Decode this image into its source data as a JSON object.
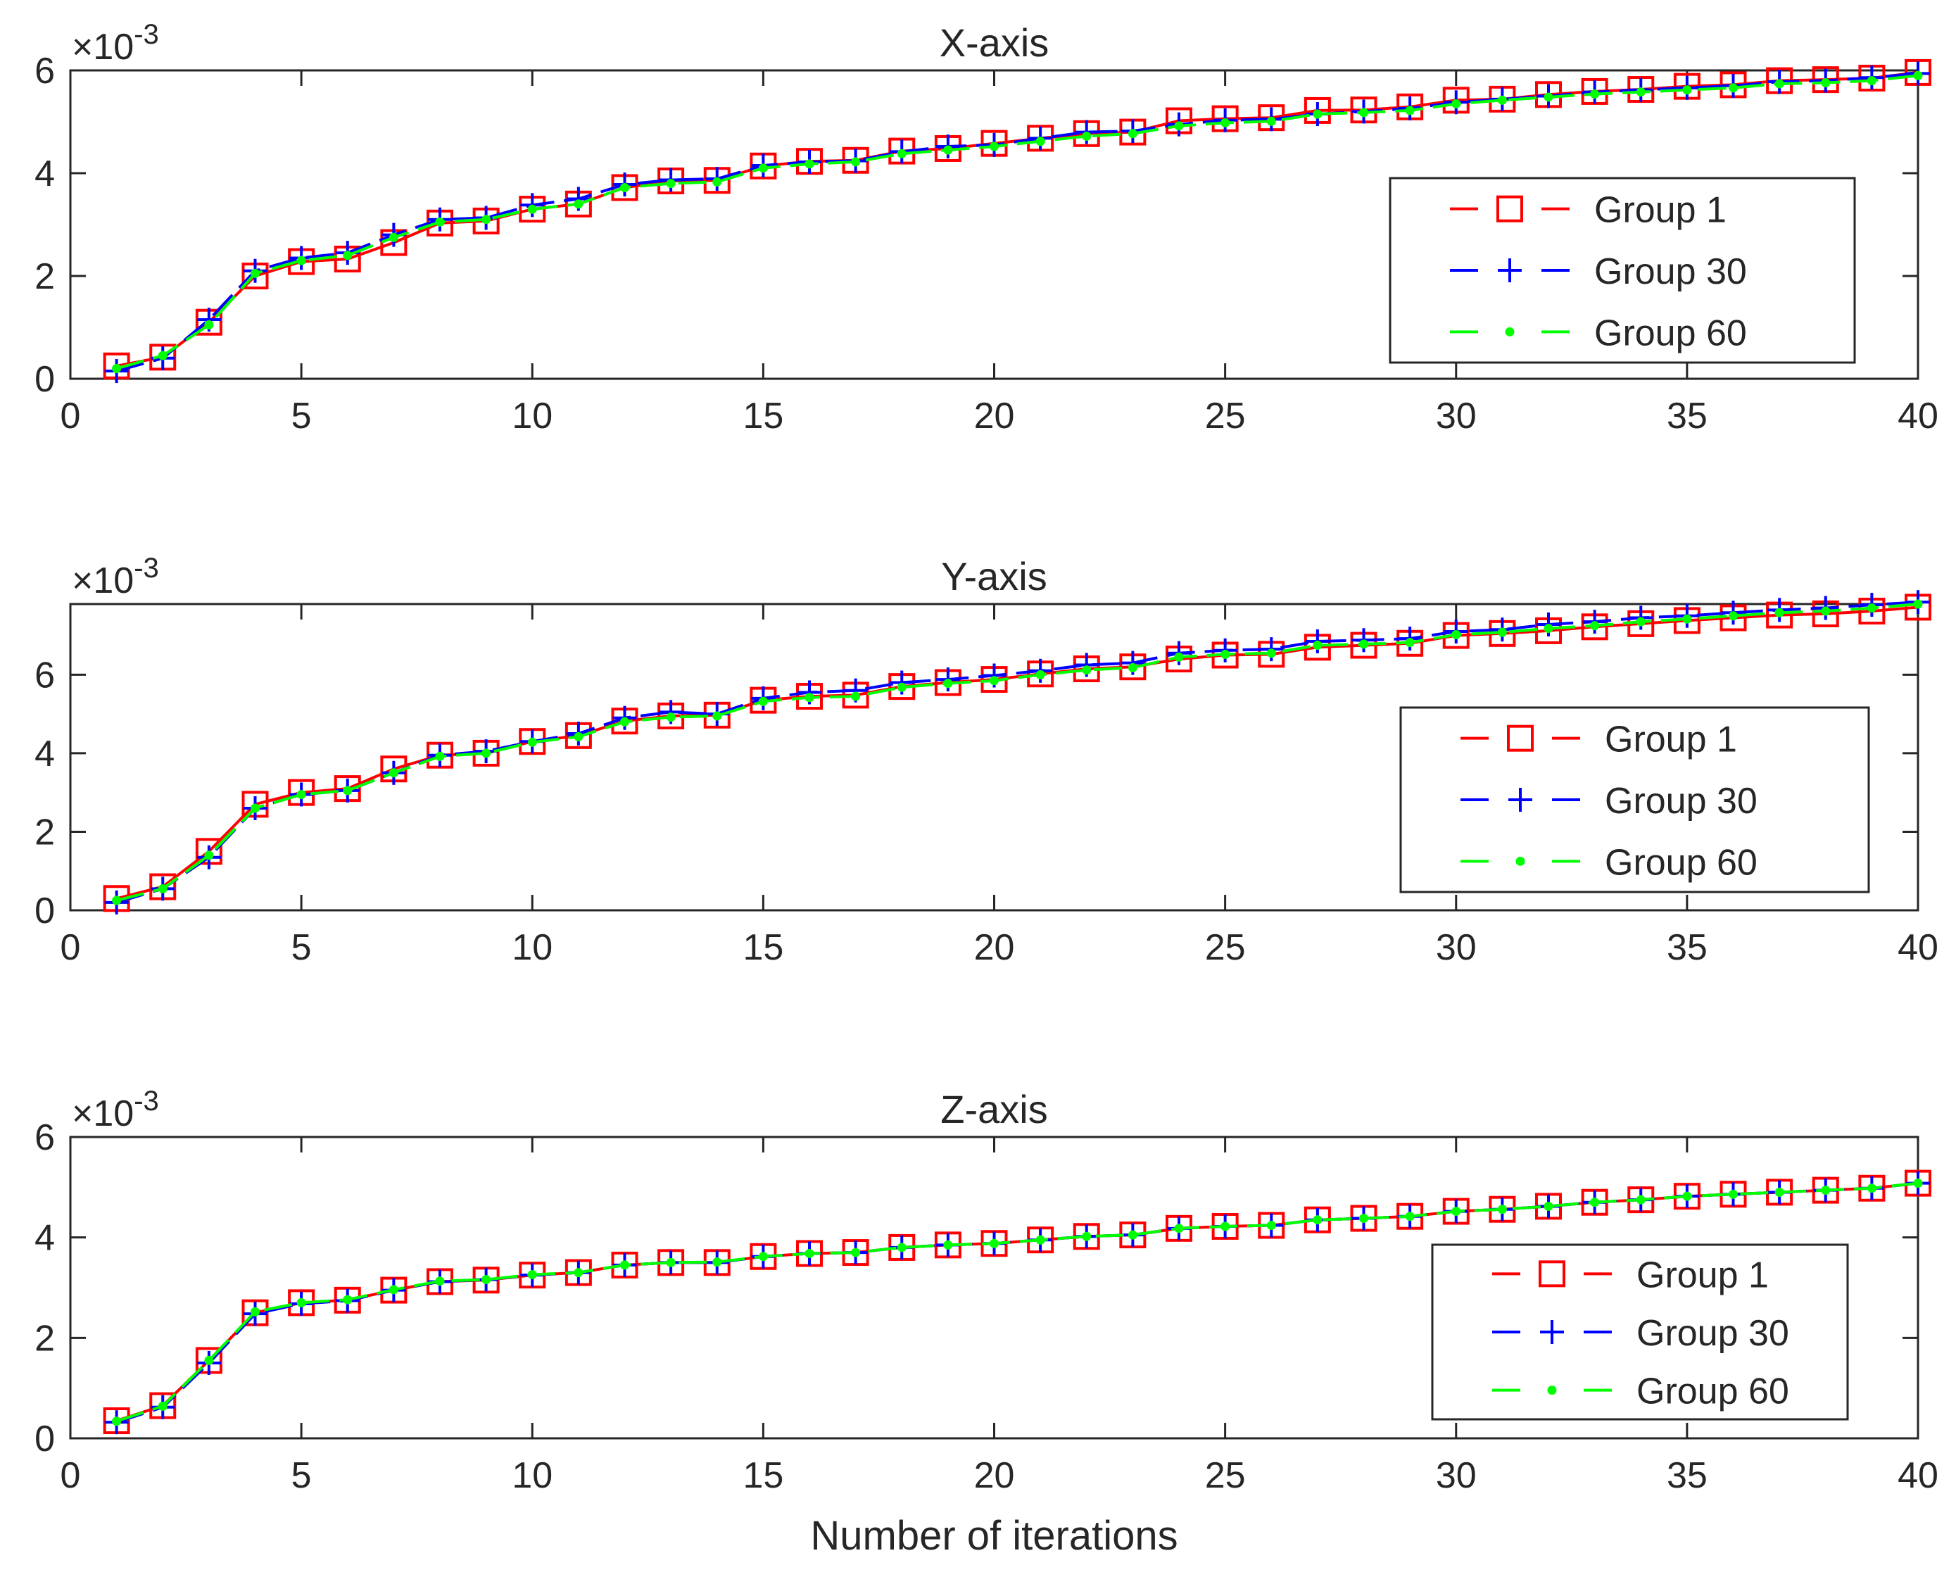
{
  "chart_data": [
    {
      "type": "line",
      "title": "X-axis",
      "exponent_label": "×10",
      "exponent_power": "-3",
      "xlabel": "",
      "ylabel": "",
      "xlim": [
        0,
        40
      ],
      "ylim": [
        0,
        6
      ],
      "xticks": [
        "0",
        "5",
        "10",
        "15",
        "20",
        "25",
        "30",
        "35",
        "40"
      ],
      "yticks": [
        "0",
        "2",
        "4",
        "6"
      ],
      "x": [
        1,
        2,
        3,
        4,
        5,
        6,
        7,
        8,
        9,
        10,
        11,
        12,
        13,
        14,
        15,
        16,
        17,
        18,
        19,
        20,
        21,
        22,
        23,
        24,
        25,
        26,
        27,
        28,
        29,
        30,
        31,
        32,
        33,
        34,
        35,
        36,
        37,
        38,
        39,
        40
      ],
      "series": [
        {
          "name": "Group 1",
          "color": "#ff0000",
          "marker": "square",
          "values": [
            0.25,
            0.42,
            1.1,
            2.0,
            2.28,
            2.33,
            2.65,
            3.03,
            3.07,
            3.3,
            3.4,
            3.72,
            3.85,
            3.86,
            4.14,
            4.23,
            4.25,
            4.43,
            4.48,
            4.58,
            4.68,
            4.77,
            4.8,
            5.02,
            5.06,
            5.08,
            5.22,
            5.23,
            5.29,
            5.42,
            5.44,
            5.53,
            5.59,
            5.63,
            5.69,
            5.72,
            5.8,
            5.82,
            5.85,
            5.96
          ]
        },
        {
          "name": "Group 30",
          "color": "#0000ff",
          "marker": "plus",
          "values": [
            0.15,
            0.4,
            1.15,
            2.1,
            2.35,
            2.45,
            2.8,
            3.1,
            3.13,
            3.38,
            3.5,
            3.78,
            3.87,
            3.89,
            4.15,
            4.22,
            4.24,
            4.42,
            4.52,
            4.55,
            4.68,
            4.8,
            4.82,
            4.95,
            5.03,
            5.05,
            5.15,
            5.2,
            5.26,
            5.38,
            5.44,
            5.5,
            5.58,
            5.62,
            5.66,
            5.7,
            5.78,
            5.8,
            5.86,
            5.94
          ]
        },
        {
          "name": "Group 60",
          "color": "#00ff00",
          "marker": "dot",
          "values": [
            0.2,
            0.45,
            1.05,
            2.05,
            2.3,
            2.4,
            2.75,
            3.05,
            3.1,
            3.3,
            3.4,
            3.72,
            3.8,
            3.83,
            4.1,
            4.18,
            4.22,
            4.38,
            4.45,
            4.52,
            4.62,
            4.72,
            4.77,
            4.92,
            4.98,
            5.01,
            5.15,
            5.18,
            5.22,
            5.35,
            5.42,
            5.48,
            5.54,
            5.58,
            5.62,
            5.66,
            5.74,
            5.76,
            5.8,
            5.9
          ]
        }
      ],
      "legend": {
        "position": "right",
        "entries": [
          "Group 1",
          "Group 30",
          "Group 60"
        ]
      }
    },
    {
      "type": "line",
      "title": "Y-axis",
      "exponent_label": "×10",
      "exponent_power": "-3",
      "xlabel": "",
      "ylabel": "",
      "xlim": [
        0,
        40
      ],
      "ylim": [
        0,
        7.8
      ],
      "xticks": [
        "0",
        "5",
        "10",
        "15",
        "20",
        "25",
        "30",
        "35",
        "40"
      ],
      "yticks": [
        "0",
        "2",
        "4",
        "6"
      ],
      "ytick_values": [
        0,
        2,
        4,
        6
      ],
      "x": [
        1,
        2,
        3,
        4,
        5,
        6,
        7,
        8,
        9,
        10,
        11,
        12,
        13,
        14,
        15,
        16,
        17,
        18,
        19,
        20,
        21,
        22,
        23,
        24,
        25,
        26,
        27,
        28,
        29,
        30,
        31,
        32,
        33,
        34,
        35,
        36,
        37,
        38,
        39,
        40
      ],
      "series": [
        {
          "name": "Group 1",
          "color": "#ff0000",
          "marker": "square",
          "values": [
            0.3,
            0.6,
            1.5,
            2.7,
            3.0,
            3.1,
            3.6,
            3.95,
            4.0,
            4.3,
            4.45,
            4.82,
            4.95,
            4.97,
            5.35,
            5.45,
            5.48,
            5.7,
            5.8,
            5.88,
            6.02,
            6.15,
            6.2,
            6.4,
            6.5,
            6.52,
            6.7,
            6.75,
            6.8,
            7.0,
            7.05,
            7.12,
            7.22,
            7.3,
            7.38,
            7.45,
            7.52,
            7.55,
            7.62,
            7.72
          ]
        },
        {
          "name": "Group 30",
          "color": "#0000ff",
          "marker": "plus",
          "values": [
            0.2,
            0.55,
            1.35,
            2.6,
            2.95,
            3.05,
            3.5,
            3.95,
            4.05,
            4.3,
            4.5,
            4.9,
            5.05,
            5.0,
            5.4,
            5.55,
            5.6,
            5.8,
            5.88,
            5.98,
            6.1,
            6.25,
            6.3,
            6.55,
            6.62,
            6.65,
            6.85,
            6.88,
            6.92,
            7.1,
            7.15,
            7.28,
            7.35,
            7.45,
            7.5,
            7.58,
            7.65,
            7.7,
            7.78,
            7.85
          ]
        },
        {
          "name": "Group 60",
          "color": "#00ff00",
          "marker": "dot",
          "values": [
            0.25,
            0.55,
            1.4,
            2.6,
            2.95,
            3.05,
            3.5,
            3.92,
            4.0,
            4.28,
            4.42,
            4.8,
            4.92,
            4.95,
            5.32,
            5.42,
            5.45,
            5.68,
            5.78,
            5.85,
            6.0,
            6.12,
            6.18,
            6.45,
            6.52,
            6.55,
            6.75,
            6.78,
            6.82,
            7.02,
            7.08,
            7.18,
            7.25,
            7.35,
            7.42,
            7.5,
            7.58,
            7.62,
            7.7,
            7.8
          ]
        }
      ],
      "legend": {
        "position": "right",
        "entries": [
          "Group 1",
          "Group 30",
          "Group 60"
        ]
      }
    },
    {
      "type": "line",
      "title": "Z-axis",
      "exponent_label": "×10",
      "exponent_power": "-3",
      "xlabel": "Number of iterations",
      "ylabel": "",
      "xlim": [
        0,
        40
      ],
      "ylim": [
        0,
        6
      ],
      "xticks": [
        "0",
        "5",
        "10",
        "15",
        "20",
        "25",
        "30",
        "35",
        "40"
      ],
      "yticks": [
        "0",
        "2",
        "4",
        "6"
      ],
      "x": [
        1,
        2,
        3,
        4,
        5,
        6,
        7,
        8,
        9,
        10,
        11,
        12,
        13,
        14,
        15,
        16,
        17,
        18,
        19,
        20,
        21,
        22,
        23,
        24,
        25,
        26,
        27,
        28,
        29,
        30,
        31,
        32,
        33,
        34,
        35,
        36,
        37,
        38,
        39,
        40
      ],
      "series": [
        {
          "name": "Group 1",
          "color": "#ff0000",
          "marker": "square",
          "values": [
            0.35,
            0.65,
            1.55,
            2.5,
            2.7,
            2.75,
            2.95,
            3.12,
            3.15,
            3.25,
            3.3,
            3.45,
            3.5,
            3.5,
            3.62,
            3.68,
            3.7,
            3.8,
            3.85,
            3.88,
            3.95,
            4.02,
            4.05,
            4.18,
            4.22,
            4.24,
            4.35,
            4.38,
            4.42,
            4.52,
            4.56,
            4.62,
            4.7,
            4.75,
            4.82,
            4.86,
            4.9,
            4.94,
            4.98,
            5.08
          ]
        },
        {
          "name": "Group 30",
          "color": "#0000ff",
          "marker": "plus",
          "values": [
            0.32,
            0.62,
            1.5,
            2.48,
            2.68,
            2.74,
            2.95,
            3.12,
            3.16,
            3.25,
            3.3,
            3.45,
            3.5,
            3.5,
            3.62,
            3.68,
            3.7,
            3.8,
            3.85,
            3.88,
            3.95,
            4.02,
            4.05,
            4.18,
            4.22,
            4.24,
            4.35,
            4.38,
            4.42,
            4.52,
            4.56,
            4.62,
            4.7,
            4.75,
            4.82,
            4.86,
            4.9,
            4.94,
            4.98,
            5.08
          ]
        },
        {
          "name": "Group 60",
          "color": "#00ff00",
          "marker": "dot",
          "values": [
            0.34,
            0.64,
            1.55,
            2.52,
            2.7,
            2.76,
            2.96,
            3.13,
            3.16,
            3.26,
            3.3,
            3.45,
            3.5,
            3.51,
            3.62,
            3.68,
            3.7,
            3.8,
            3.85,
            3.88,
            3.95,
            4.02,
            4.05,
            4.18,
            4.22,
            4.24,
            4.35,
            4.38,
            4.42,
            4.52,
            4.56,
            4.62,
            4.7,
            4.75,
            4.82,
            4.86,
            4.9,
            4.94,
            4.98,
            5.08
          ]
        }
      ],
      "legend": {
        "position": "right",
        "entries": [
          "Group 1",
          "Group 30",
          "Group 60"
        ]
      }
    }
  ]
}
